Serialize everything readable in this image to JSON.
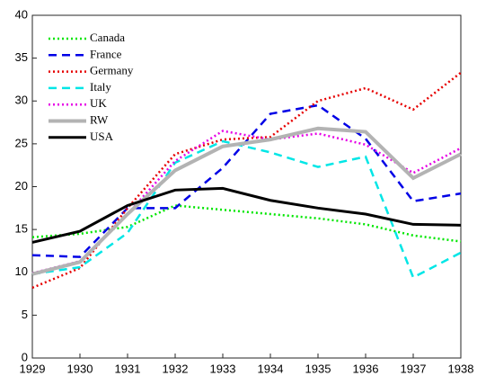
{
  "chart_data": {
    "type": "line",
    "x": [
      1929,
      1930,
      1931,
      1932,
      1933,
      1934,
      1935,
      1936,
      1937,
      1938
    ],
    "xlim": [
      1929,
      1938
    ],
    "xticks": [
      1929,
      1930,
      1931,
      1932,
      1933,
      1934,
      1935,
      1936,
      1937,
      1938
    ],
    "ylim": [
      0,
      40
    ],
    "yticks": [
      0,
      5,
      10,
      15,
      20,
      25,
      30,
      35,
      40
    ],
    "legend": "upper-left",
    "series": [
      {
        "name": "Canada",
        "color": "#00e600",
        "linestyle": "dotted",
        "values": [
          14.1,
          14.5,
          15.3,
          17.8,
          17.3,
          16.8,
          16.3,
          15.6,
          14.3,
          13.6
        ]
      },
      {
        "name": "France",
        "color": "#0000e6",
        "linestyle": "dashed",
        "values": [
          12.0,
          11.8,
          17.5,
          17.5,
          22.2,
          28.5,
          29.5,
          25.6,
          18.3,
          19.2
        ]
      },
      {
        "name": "Germany",
        "color": "#e60000",
        "linestyle": "dotted",
        "values": [
          8.2,
          10.5,
          17.5,
          23.8,
          25.5,
          25.8,
          30.0,
          31.5,
          29.0,
          33.3
        ]
      },
      {
        "name": "Italy",
        "color": "#00e6e6",
        "linestyle": "dashed",
        "values": [
          9.8,
          10.6,
          14.6,
          22.8,
          25.3,
          24.0,
          22.3,
          23.5,
          9.4,
          12.3
        ]
      },
      {
        "name": "UK",
        "color": "#e600e6",
        "linestyle": "dotted",
        "values": [
          9.9,
          11.3,
          16.8,
          23.0,
          26.5,
          25.5,
          26.2,
          24.9,
          21.6,
          24.5
        ]
      },
      {
        "name": "RW",
        "color": "#b3b3b3",
        "linestyle": "solid",
        "width": 4,
        "values": [
          9.8,
          11.2,
          16.8,
          21.9,
          24.7,
          25.5,
          26.8,
          26.4,
          21.0,
          23.8
        ]
      },
      {
        "name": "USA",
        "color": "#000000",
        "linestyle": "solid",
        "width": 3,
        "values": [
          13.5,
          14.8,
          17.8,
          19.6,
          19.8,
          18.4,
          17.5,
          16.8,
          15.6,
          15.5
        ]
      }
    ]
  }
}
